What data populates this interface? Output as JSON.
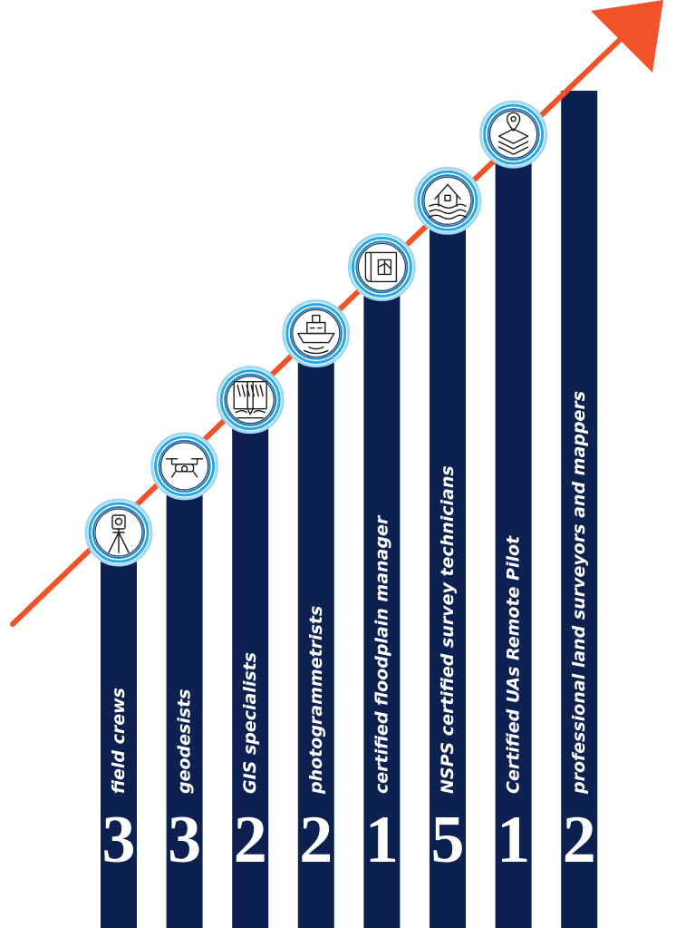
{
  "colors": {
    "bar": "#0d2150",
    "arrow": "#f0522a",
    "ring_outer": "#9fd8f4",
    "ring_mid": "#29a9e1",
    "ring_inner": "#1a7fc0",
    "icon": "#1b1b1b",
    "background": "#ffffff"
  },
  "chart_data": {
    "type": "bar",
    "categories": [
      "field crews",
      "geodesists",
      "GIS specialists",
      "photogrammetrists",
      "certified floodplain manager",
      "NSPS certified survey technicians",
      "Certified UAs Remote Pilot",
      "professional land surveyors and mappers"
    ],
    "values": [
      3,
      3,
      2,
      2,
      1,
      5,
      1,
      2
    ],
    "icons": [
      "survey-tripod-icon",
      "drone-icon",
      "soil-boring-icon",
      "survey-vessel-icon",
      "floodplain-map-icon",
      "flooded-house-icon",
      "layered-map-pin-icon",
      ""
    ],
    "title": "",
    "xlabel": "",
    "ylabel": "",
    "legend": "none",
    "grid": false
  }
}
